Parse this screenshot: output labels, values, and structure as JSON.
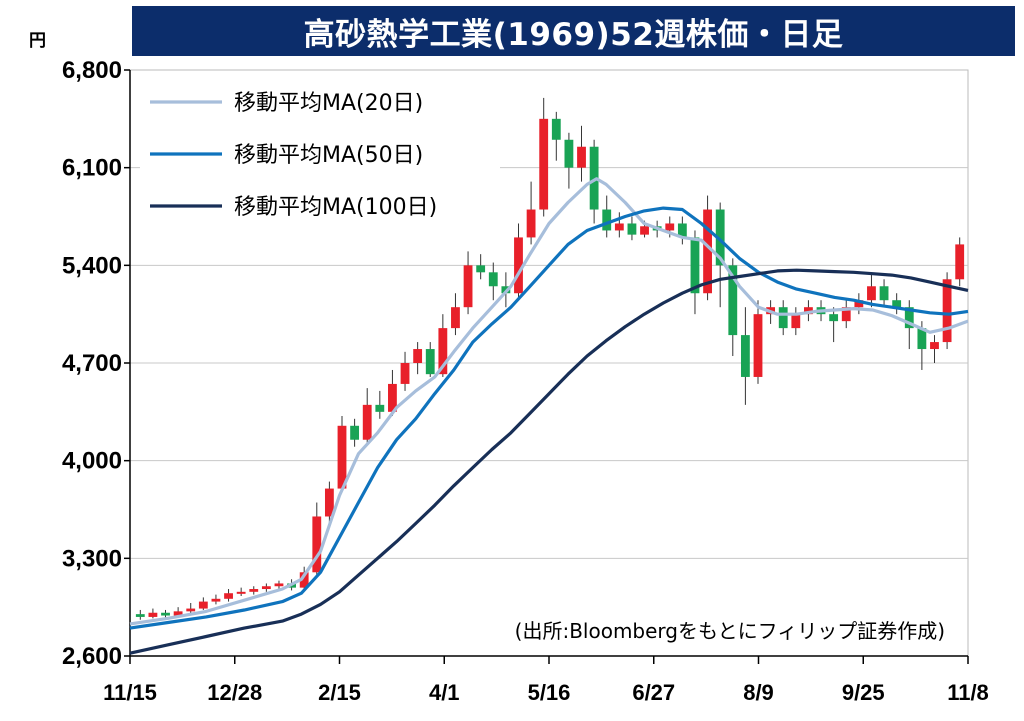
{
  "chart_data": {
    "type": "line",
    "title": "高砂熱学工業(1969)52週株価・日足",
    "unit_label": "円",
    "source": "(出所:Bloombergをもとにフィリップ証券作成)",
    "yticks": [
      "6,800",
      "6,100",
      "5,400",
      "4,700",
      "4,000",
      "3,300",
      "2,600"
    ],
    "ytick_values": [
      6800,
      6100,
      5400,
      4700,
      4000,
      3300,
      2600
    ],
    "ylim": [
      2600,
      6800
    ],
    "xticks": [
      "11/15",
      "12/28",
      "2/15",
      "4/1",
      "5/16",
      "6/27",
      "8/9",
      "9/25",
      "11/8"
    ],
    "grid": true,
    "legend_position": "top-left",
    "colors": {
      "up": "#e8202a",
      "down": "#19a355",
      "ma20": "#a7bedb",
      "ma50": "#0f73bd",
      "ma100": "#182f57",
      "title_bg": "#0c2d6b"
    },
    "series": [
      {
        "name": "移動平均MA(20日)",
        "color_key": "ma20",
        "points": [
          [
            0,
            2830
          ],
          [
            4,
            2870
          ],
          [
            8,
            2920
          ],
          [
            12,
            3000
          ],
          [
            16,
            3080
          ],
          [
            18,
            3150
          ],
          [
            20,
            3350
          ],
          [
            22,
            3750
          ],
          [
            24,
            4050
          ],
          [
            26,
            4200
          ],
          [
            28,
            4380
          ],
          [
            30,
            4500
          ],
          [
            32,
            4600
          ],
          [
            34,
            4780
          ],
          [
            36,
            4950
          ],
          [
            38,
            5100
          ],
          [
            40,
            5250
          ],
          [
            42,
            5480
          ],
          [
            44,
            5700
          ],
          [
            46,
            5850
          ],
          [
            48,
            5980
          ],
          [
            49,
            6020
          ],
          [
            50,
            5980
          ],
          [
            52,
            5850
          ],
          [
            54,
            5700
          ],
          [
            56,
            5650
          ],
          [
            58,
            5600
          ],
          [
            60,
            5580
          ],
          [
            62,
            5450
          ],
          [
            64,
            5250
          ],
          [
            66,
            5100
          ],
          [
            68,
            5050
          ],
          [
            70,
            5050
          ],
          [
            72,
            5070
          ],
          [
            74,
            5080
          ],
          [
            76,
            5090
          ],
          [
            78,
            5080
          ],
          [
            80,
            5040
          ],
          [
            82,
            4980
          ],
          [
            84,
            4920
          ],
          [
            86,
            4950
          ],
          [
            88,
            5000
          ]
        ]
      },
      {
        "name": "移動平均MA(50日)",
        "color_key": "ma50",
        "points": [
          [
            0,
            2800
          ],
          [
            4,
            2840
          ],
          [
            8,
            2880
          ],
          [
            12,
            2930
          ],
          [
            16,
            2990
          ],
          [
            18,
            3050
          ],
          [
            20,
            3200
          ],
          [
            22,
            3450
          ],
          [
            24,
            3700
          ],
          [
            26,
            3950
          ],
          [
            28,
            4150
          ],
          [
            30,
            4300
          ],
          [
            32,
            4480
          ],
          [
            34,
            4650
          ],
          [
            36,
            4850
          ],
          [
            38,
            4980
          ],
          [
            40,
            5100
          ],
          [
            42,
            5250
          ],
          [
            44,
            5400
          ],
          [
            46,
            5550
          ],
          [
            48,
            5650
          ],
          [
            50,
            5700
          ],
          [
            52,
            5750
          ],
          [
            54,
            5790
          ],
          [
            56,
            5810
          ],
          [
            58,
            5800
          ],
          [
            60,
            5700
          ],
          [
            62,
            5580
          ],
          [
            64,
            5450
          ],
          [
            66,
            5350
          ],
          [
            68,
            5280
          ],
          [
            70,
            5230
          ],
          [
            72,
            5200
          ],
          [
            74,
            5170
          ],
          [
            76,
            5150
          ],
          [
            78,
            5120
          ],
          [
            80,
            5100
          ],
          [
            82,
            5080
          ],
          [
            84,
            5060
          ],
          [
            86,
            5050
          ],
          [
            88,
            5070
          ]
        ]
      },
      {
        "name": "移動平均MA(100日)",
        "color_key": "ma100",
        "points": [
          [
            0,
            2620
          ],
          [
            4,
            2680
          ],
          [
            8,
            2740
          ],
          [
            12,
            2800
          ],
          [
            16,
            2850
          ],
          [
            18,
            2900
          ],
          [
            20,
            2970
          ],
          [
            22,
            3060
          ],
          [
            24,
            3180
          ],
          [
            26,
            3300
          ],
          [
            28,
            3420
          ],
          [
            30,
            3550
          ],
          [
            32,
            3680
          ],
          [
            34,
            3820
          ],
          [
            36,
            3950
          ],
          [
            38,
            4080
          ],
          [
            40,
            4200
          ],
          [
            42,
            4340
          ],
          [
            44,
            4480
          ],
          [
            46,
            4620
          ],
          [
            48,
            4750
          ],
          [
            50,
            4860
          ],
          [
            52,
            4960
          ],
          [
            54,
            5050
          ],
          [
            56,
            5130
          ],
          [
            58,
            5200
          ],
          [
            60,
            5260
          ],
          [
            62,
            5300
          ],
          [
            64,
            5320
          ],
          [
            66,
            5340
          ],
          [
            68,
            5360
          ],
          [
            70,
            5365
          ],
          [
            72,
            5360
          ],
          [
            74,
            5355
          ],
          [
            76,
            5350
          ],
          [
            78,
            5340
          ],
          [
            80,
            5330
          ],
          [
            82,
            5310
          ],
          [
            84,
            5280
          ],
          [
            86,
            5250
          ],
          [
            88,
            5220
          ]
        ]
      }
    ],
    "candles": [
      [
        2900,
        2880,
        2930,
        2860
      ],
      [
        2880,
        2910,
        2940,
        2870
      ],
      [
        2910,
        2890,
        2930,
        2870
      ],
      [
        2890,
        2920,
        2950,
        2880
      ],
      [
        2920,
        2940,
        2980,
        2900
      ],
      [
        2940,
        2990,
        3020,
        2930
      ],
      [
        2990,
        3010,
        3040,
        2970
      ],
      [
        3010,
        3050,
        3080,
        2990
      ],
      [
        3050,
        3060,
        3090,
        3030
      ],
      [
        3060,
        3080,
        3100,
        3040
      ],
      [
        3080,
        3100,
        3120,
        3060
      ],
      [
        3100,
        3120,
        3140,
        3080
      ],
      [
        3120,
        3090,
        3150,
        3070
      ],
      [
        3090,
        3200,
        3240,
        3080
      ],
      [
        3200,
        3600,
        3700,
        3180
      ],
      [
        3600,
        3800,
        3850,
        3550
      ],
      [
        3800,
        4250,
        4320,
        3780
      ],
      [
        4250,
        4150,
        4300,
        4100
      ],
      [
        4150,
        4400,
        4520,
        4120
      ],
      [
        4400,
        4350,
        4500,
        4300
      ],
      [
        4350,
        4550,
        4650,
        4320
      ],
      [
        4550,
        4700,
        4780,
        4500
      ],
      [
        4700,
        4800,
        4850,
        4620
      ],
      [
        4800,
        4620,
        4850,
        4600
      ],
      [
        4620,
        4950,
        5050,
        4600
      ],
      [
        4950,
        5100,
        5200,
        4900
      ],
      [
        5100,
        5400,
        5500,
        5050
      ],
      [
        5400,
        5350,
        5480,
        5300
      ],
      [
        5350,
        5250,
        5420,
        5150
      ],
      [
        5250,
        5200,
        5350,
        5100
      ],
      [
        5200,
        5600,
        5700,
        5150
      ],
      [
        5600,
        5800,
        6000,
        5550
      ],
      [
        5800,
        6450,
        6600,
        5750
      ],
      [
        6450,
        6300,
        6500,
        6150
      ],
      [
        6300,
        6100,
        6350,
        5950
      ],
      [
        6100,
        6250,
        6400,
        6000
      ],
      [
        6250,
        5800,
        6300,
        5700
      ],
      [
        5800,
        5650,
        5900,
        5600
      ],
      [
        5650,
        5700,
        5780,
        5600
      ],
      [
        5700,
        5620,
        5750,
        5580
      ],
      [
        5620,
        5680,
        5720,
        5600
      ],
      [
        5680,
        5650,
        5720,
        5600
      ],
      [
        5650,
        5700,
        5750,
        5600
      ],
      [
        5700,
        5600,
        5750,
        5550
      ],
      [
        5600,
        5200,
        5650,
        5050
      ],
      [
        5200,
        5800,
        5900,
        5150
      ],
      [
        5800,
        5400,
        5850,
        5100
      ],
      [
        5400,
        4900,
        5450,
        4750
      ],
      [
        4900,
        4600,
        5100,
        4400
      ],
      [
        4600,
        5050,
        5150,
        4550
      ],
      [
        5050,
        5100,
        5150,
        4980
      ],
      [
        5100,
        4950,
        5150,
        4900
      ],
      [
        4950,
        5050,
        5100,
        4900
      ],
      [
        5050,
        5100,
        5150,
        5000
      ],
      [
        5100,
        5050,
        5150,
        5000
      ],
      [
        5050,
        5000,
        5100,
        4850
      ],
      [
        5000,
        5100,
        5150,
        4950
      ],
      [
        5100,
        5150,
        5200,
        5050
      ],
      [
        5150,
        5250,
        5350,
        5100
      ],
      [
        5250,
        5150,
        5300,
        5100
      ],
      [
        5150,
        5100,
        5200,
        5050
      ],
      [
        5100,
        4950,
        5150,
        4800
      ],
      [
        4950,
        4800,
        5000,
        4650
      ],
      [
        4800,
        4850,
        4900,
        4700
      ],
      [
        4850,
        5300,
        5350,
        4800
      ],
      [
        5300,
        5550,
        5600,
        5250
      ]
    ]
  }
}
